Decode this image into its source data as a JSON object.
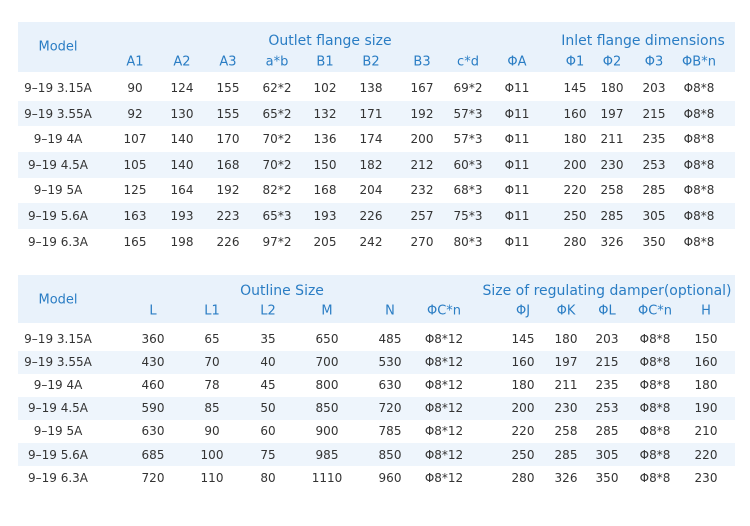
{
  "table1": {
    "model_header": "Model",
    "groups": [
      "Outlet flange size",
      "Inlet flange dimensions"
    ],
    "columns": [
      "A1",
      "A2",
      "A3",
      "a*b",
      "B1",
      "B2",
      "B3",
      "c*d",
      "ΦA",
      "Φ1",
      "Φ2",
      "Φ3",
      "ΦB*n"
    ],
    "rows": [
      [
        "9–19 3.15A",
        90,
        124,
        155,
        "62*2",
        102,
        138,
        167,
        "69*2",
        "Φ11",
        145,
        180,
        203,
        "Φ8*8"
      ],
      [
        "9–19 3.55A",
        92,
        130,
        155,
        "65*2",
        132,
        171,
        192,
        "57*3",
        "Φ11",
        160,
        197,
        215,
        "Φ8*8"
      ],
      [
        "9–19 4A",
        107,
        140,
        170,
        "70*2",
        136,
        174,
        200,
        "57*3",
        "Φ11",
        180,
        211,
        235,
        "Φ8*8"
      ],
      [
        "9–19 4.5A",
        105,
        140,
        168,
        "70*2",
        150,
        182,
        212,
        "60*3",
        "Φ11",
        200,
        230,
        253,
        "Φ8*8"
      ],
      [
        "9–19 5A",
        125,
        164,
        192,
        "82*2",
        168,
        204,
        232,
        "68*3",
        "Φ11",
        220,
        258,
        285,
        "Φ8*8"
      ],
      [
        "9–19 5.6A",
        163,
        193,
        223,
        "65*3",
        193,
        226,
        257,
        "75*3",
        "Φ11",
        250,
        285,
        305,
        "Φ8*8"
      ],
      [
        "9–19 6.3A",
        165,
        198,
        226,
        "97*2",
        205,
        242,
        270,
        "80*3",
        "Φ11",
        280,
        326,
        350,
        "Φ8*8"
      ]
    ]
  },
  "table2": {
    "model_header": "Model",
    "groups": [
      "Outline Size",
      "Size of regulating damper(optional)"
    ],
    "columns": [
      "L",
      "L1",
      "L2",
      "M",
      "N",
      "ΦC*n",
      "ΦJ",
      "ΦK",
      "ΦL",
      "ΦC*n",
      "H"
    ],
    "rows": [
      [
        "9–19 3.15A",
        360,
        65,
        35,
        650,
        485,
        "Φ8*12",
        145,
        180,
        203,
        "Φ8*8",
        150
      ],
      [
        "9–19 3.55A",
        430,
        70,
        40,
        700,
        530,
        "Φ8*12",
        160,
        197,
        215,
        "Φ8*8",
        160
      ],
      [
        "9–19 4A",
        460,
        78,
        45,
        800,
        630,
        "Φ8*12",
        180,
        211,
        235,
        "Φ8*8",
        180
      ],
      [
        "9–19 4.5A",
        590,
        85,
        50,
        850,
        720,
        "Φ8*12",
        200,
        230,
        253,
        "Φ8*8",
        190
      ],
      [
        "9–19 5A",
        630,
        90,
        60,
        900,
        785,
        "Φ8*12",
        220,
        258,
        285,
        "Φ8*8",
        210
      ],
      [
        "9–19 5.6A",
        685,
        100,
        75,
        985,
        850,
        "Φ8*12",
        250,
        285,
        305,
        "Φ8*8",
        220
      ],
      [
        "9–19 6.3A",
        720,
        110,
        80,
        1110,
        960,
        "Φ8*12",
        280,
        326,
        350,
        "Φ8*8",
        230
      ]
    ]
  }
}
